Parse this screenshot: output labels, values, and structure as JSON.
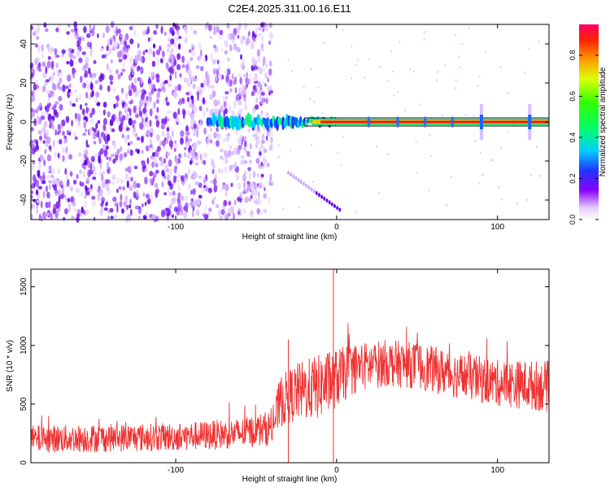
{
  "title": "C2E4.2025.311.00.16.E11",
  "chart_data": [
    {
      "type": "heatmap",
      "title": "C2E4.2025.311.00.16.E11",
      "xlabel": "Height of straight line (km)",
      "ylabel": "Frequency (Hz)",
      "xlim": [
        -190,
        132
      ],
      "ylim": [
        -50,
        50
      ],
      "x_ticks": [
        -100,
        0,
        100
      ],
      "x_tick_labels": [
        "-100",
        "0",
        "100"
      ],
      "y_ticks": [
        -40,
        -20,
        0,
        20,
        40
      ],
      "y_tick_labels": [
        "-40",
        "-20",
        "0",
        "20",
        "40"
      ],
      "colorbar": {
        "label": "Normalized spectral amplitude",
        "range": [
          0,
          0.95
        ],
        "ticks": [
          0,
          0.2,
          0.4,
          0.6,
          0.8
        ],
        "tick_labels": [
          "0.0",
          "0.2",
          "0.4",
          "0.6",
          "0.8"
        ],
        "colormap": "white-purple-blue-cyan-green-yellow-red-magenta"
      },
      "features": {
        "noise_region_x": [
          -190,
          -40
        ],
        "carrier_line": {
          "frequency": 0,
          "x_start": -80,
          "x_end": 132,
          "amplitude": 0.85
        },
        "diagonal_streak": {
          "x": [
            -30,
            2
          ],
          "frequency": [
            -26,
            -45
          ]
        },
        "bursts_x": [
          90,
          120
        ]
      },
      "grid": false
    },
    {
      "type": "line",
      "xlabel": "Height of straight line (km)",
      "ylabel": "SNR (10 * v/v)",
      "xlim": [
        -190,
        132
      ],
      "ylim": [
        0,
        1650
      ],
      "x_ticks": [
        -100,
        0,
        100
      ],
      "x_tick_labels": [
        "-100",
        "0",
        "100"
      ],
      "y_ticks": [
        0,
        500,
        1000,
        1500
      ],
      "y_tick_labels": [
        "0",
        "500",
        "1000",
        "1500"
      ],
      "color": "#ee3333",
      "envelope": {
        "x": [
          -190,
          -150,
          -100,
          -60,
          -40,
          -35,
          -25,
          -10,
          0,
          10,
          30,
          50,
          70,
          100,
          132
        ],
        "mean": [
          200,
          210,
          220,
          250,
          300,
          520,
          600,
          650,
          720,
          800,
          850,
          830,
          760,
          680,
          650
        ],
        "spread": [
          120,
          120,
          120,
          130,
          150,
          220,
          250,
          280,
          250,
          220,
          200,
          200,
          200,
          200,
          220
        ]
      },
      "spikes": [
        {
          "x": -2,
          "y": 1650
        },
        {
          "x": -30,
          "y": 1050
        }
      ],
      "grid": false
    }
  ]
}
